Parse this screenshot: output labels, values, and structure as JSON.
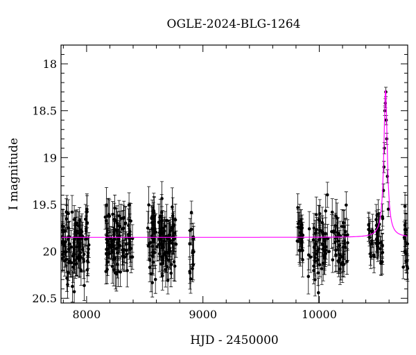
{
  "chart_data": {
    "type": "scatter",
    "title": "OGLE-2024-BLG-1264",
    "xlabel": "HJD - 2450000",
    "ylabel": "I magnitude",
    "xlim": [
      7780,
      10760
    ],
    "ylim": [
      20.55,
      17.8
    ],
    "y_inverted": true,
    "x_ticks": [
      8000,
      9000,
      10000
    ],
    "y_ticks": [
      18,
      18.5,
      19,
      19.5,
      20,
      20.5
    ],
    "grid": false,
    "colors": {
      "points": "#000000",
      "model": "#ff00ff"
    },
    "model": {
      "baseline": 19.85,
      "peak_time": 10570,
      "peak_magnitude": 18.28,
      "time_scale_days": 18
    },
    "observing_seasons": [
      {
        "start": 7790,
        "end": 8020,
        "mean_mag": 19.9,
        "scatter": 0.2,
        "error": 0.16,
        "count": 95
      },
      {
        "start": 8160,
        "end": 8400,
        "mean_mag": 19.9,
        "scatter": 0.18,
        "error": 0.16,
        "count": 90
      },
      {
        "start": 8520,
        "end": 8770,
        "mean_mag": 19.92,
        "scatter": 0.2,
        "error": 0.17,
        "count": 100
      },
      {
        "start": 8880,
        "end": 8920,
        "mean_mag": 19.95,
        "scatter": 0.2,
        "error": 0.15,
        "count": 14
      },
      {
        "start": 9810,
        "end": 9860,
        "mean_mag": 19.8,
        "scatter": 0.2,
        "error": 0.16,
        "count": 22
      },
      {
        "start": 9900,
        "end": 10060,
        "mean_mag": 19.95,
        "scatter": 0.2,
        "error": 0.16,
        "count": 50
      },
      {
        "start": 10070,
        "end": 10250,
        "mean_mag": 19.9,
        "scatter": 0.2,
        "error": 0.16,
        "count": 45
      },
      {
        "start": 10420,
        "end": 10545,
        "mean_mag": 19.85,
        "scatter": 0.15,
        "error": 0.15,
        "count": 40
      },
      {
        "start": 10720,
        "end": 10760,
        "mean_mag": 19.95,
        "scatter": 0.2,
        "error": 0.15,
        "count": 14
      }
    ],
    "event_points": [
      {
        "x": 10545,
        "y": 19.65,
        "err": 0.08
      },
      {
        "x": 10552,
        "y": 19.35,
        "err": 0.07
      },
      {
        "x": 10556,
        "y": 19.1,
        "err": 0.06
      },
      {
        "x": 10560,
        "y": 18.9,
        "err": 0.06
      },
      {
        "x": 10564,
        "y": 18.5,
        "err": 0.05
      },
      {
        "x": 10568,
        "y": 18.42,
        "err": 0.05
      },
      {
        "x": 10572,
        "y": 18.3,
        "err": 0.05
      },
      {
        "x": 10576,
        "y": 18.6,
        "err": 0.05
      },
      {
        "x": 10580,
        "y": 18.8,
        "err": 0.06
      },
      {
        "x": 10586,
        "y": 19.2,
        "err": 0.07
      },
      {
        "x": 10594,
        "y": 19.55,
        "err": 0.08
      }
    ]
  }
}
